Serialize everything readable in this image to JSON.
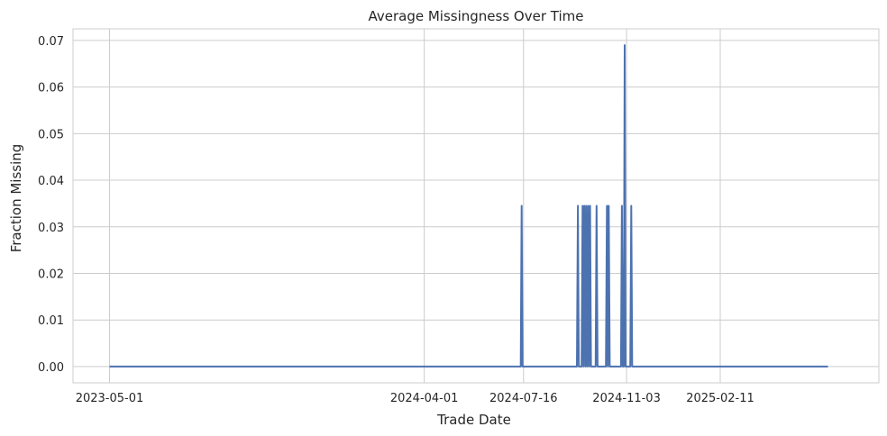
{
  "chart_data": {
    "type": "line",
    "title": "Average Missingness Over Time",
    "xlabel": "Trade Date",
    "ylabel": "Fraction Missing",
    "x_tick_labels": [
      "2023-05-01",
      "2024-04-01",
      "2024-07-16",
      "2024-11-03",
      "2025-02-11"
    ],
    "y_ticks": [
      0.0,
      0.01,
      0.02,
      0.03,
      0.04,
      0.05,
      0.06,
      0.07
    ],
    "y_tick_labels": [
      "0.00",
      "0.01",
      "0.02",
      "0.03",
      "0.04",
      "0.05",
      "0.06",
      "0.07"
    ],
    "ylim": [
      -0.0035,
      0.0725
    ],
    "grid": true,
    "series": [
      {
        "color": "#4c72b0",
        "points": [
          {
            "x": "2023-05-01",
            "y": 0.0
          },
          {
            "x": "2024-07-13",
            "y": 0.0
          },
          {
            "x": "2024-07-14",
            "y": 0.0345
          },
          {
            "x": "2024-07-15",
            "y": 0.0
          },
          {
            "x": "2024-09-11",
            "y": 0.0
          },
          {
            "x": "2024-09-12",
            "y": 0.0345
          },
          {
            "x": "2024-09-13",
            "y": 0.0
          },
          {
            "x": "2024-09-16",
            "y": 0.0
          },
          {
            "x": "2024-09-17",
            "y": 0.0345
          },
          {
            "x": "2024-09-18",
            "y": 0.0
          },
          {
            "x": "2024-09-19",
            "y": 0.0345
          },
          {
            "x": "2024-09-20",
            "y": 0.0
          },
          {
            "x": "2024-09-21",
            "y": 0.0345
          },
          {
            "x": "2024-09-22",
            "y": 0.0
          },
          {
            "x": "2024-09-23",
            "y": 0.0345
          },
          {
            "x": "2024-09-24",
            "y": 0.0
          },
          {
            "x": "2024-09-25",
            "y": 0.0345
          },
          {
            "x": "2024-09-26",
            "y": 0.0
          },
          {
            "x": "2024-10-01",
            "y": 0.0
          },
          {
            "x": "2024-10-02",
            "y": 0.0345
          },
          {
            "x": "2024-10-03",
            "y": 0.0
          },
          {
            "x": "2024-10-12",
            "y": 0.0
          },
          {
            "x": "2024-10-13",
            "y": 0.0345
          },
          {
            "x": "2024-10-14",
            "y": 0.0
          },
          {
            "x": "2024-10-15",
            "y": 0.0345
          },
          {
            "x": "2024-10-16",
            "y": 0.0
          },
          {
            "x": "2024-10-28",
            "y": 0.0
          },
          {
            "x": "2024-10-29",
            "y": 0.0345
          },
          {
            "x": "2024-10-30",
            "y": 0.0
          },
          {
            "x": "2024-10-31",
            "y": 0.0
          },
          {
            "x": "2024-11-01",
            "y": 0.069
          },
          {
            "x": "2024-11-02",
            "y": 0.0
          },
          {
            "x": "2024-11-07",
            "y": 0.0
          },
          {
            "x": "2024-11-08",
            "y": 0.0345
          },
          {
            "x": "2024-11-09",
            "y": 0.0
          },
          {
            "x": "2025-06-06",
            "y": 0.0
          }
        ]
      }
    ]
  }
}
